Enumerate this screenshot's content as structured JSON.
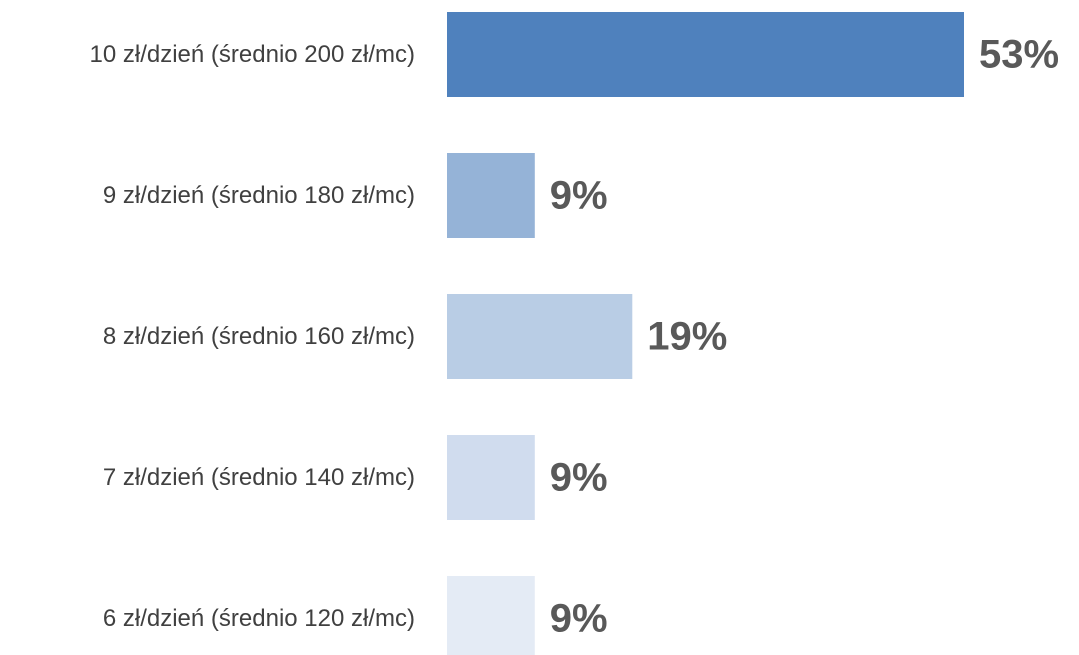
{
  "chart_data": {
    "type": "bar",
    "orientation": "horizontal",
    "categories": [
      "10 zł/dzień (średnio 200 zł/mc)",
      "9 zł/dzień (średnio 180 zł/mc)",
      "8 zł/dzień (średnio 160 zł/mc)",
      "7 zł/dzień (średnio 140 zł/mc)",
      "6 zł/dzień (średnio 120 zł/mc)"
    ],
    "values": [
      53,
      9,
      19,
      9,
      9
    ],
    "data_labels": [
      "53%",
      "9%",
      "19%",
      "9%",
      "9%"
    ],
    "colors": [
      "#4f81bd",
      "#95b3d7",
      "#b9cde5",
      "#d0dcee",
      "#e4ebf5"
    ],
    "unit": "%",
    "title": "",
    "xlabel": "",
    "ylabel": "",
    "xlim": [
      0,
      53
    ],
    "grid": false,
    "legend": "none"
  }
}
